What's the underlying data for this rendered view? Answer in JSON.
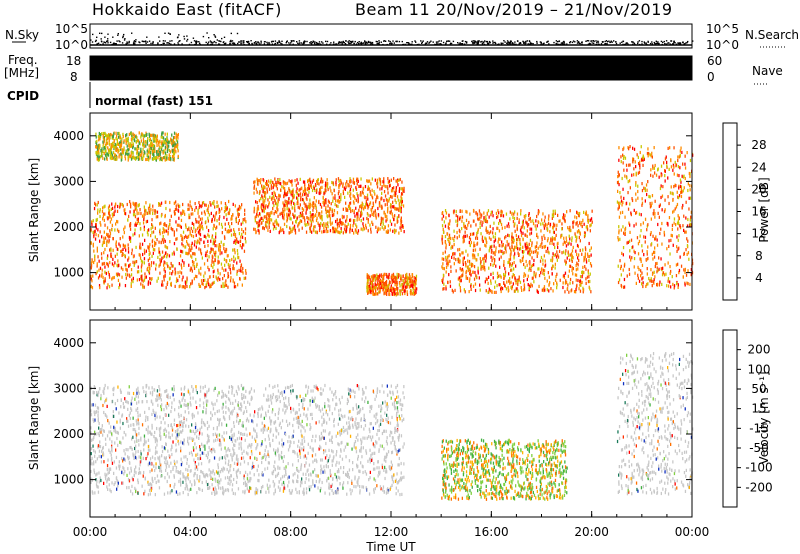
{
  "header": {
    "title": "Hokkaido East (fitACF)",
    "beam_info": "Beam 11  20/Nov/2019 – 21/Nov/2019"
  },
  "strips": {
    "nsky_label": "N.Sky",
    "nsearch_label": "N.Search",
    "freq_label_1": "Freq.",
    "freq_label_2": "[MHz]",
    "nave_label": "Nave",
    "cpid_label": "CPID",
    "cpid_text": "normal (fast) 151",
    "noise_ticks": [
      "10^5",
      "10^0"
    ],
    "freq_ticks": [
      "18",
      "8"
    ],
    "nave_ticks": [
      "60",
      "0"
    ]
  },
  "chart_data": [
    {
      "type": "heatmap",
      "panel": "power",
      "ylabel": "Slant Range [km]",
      "xlabel": "",
      "y_ticks": [
        1000,
        2000,
        3000,
        4000
      ],
      "ylim": [
        180,
        4500
      ],
      "xlim": [
        0,
        24
      ],
      "colorbar": {
        "label": "Power [dB]",
        "ticks": [
          4,
          8,
          12,
          16,
          20,
          24,
          28
        ],
        "colors": [
          "#0000ff",
          "#2050a0",
          "#3a7a5a",
          "#40a040",
          "#c8c800",
          "#ff8c00",
          "#ff5000",
          "#ff0000"
        ]
      },
      "regions": [
        {
          "t0": 0.0,
          "t1": 6.2,
          "r0": 700,
          "r1": 2600,
          "level": "high"
        },
        {
          "t0": 0.2,
          "t1": 3.5,
          "r0": 3500,
          "r1": 4100,
          "level": "mid"
        },
        {
          "t0": 6.5,
          "t1": 12.5,
          "r0": 1900,
          "r1": 3100,
          "level": "high"
        },
        {
          "t0": 11.0,
          "t1": 13.0,
          "r0": 550,
          "r1": 1000,
          "level": "high"
        },
        {
          "t0": 14.0,
          "t1": 20.0,
          "r0": 600,
          "r1": 2400,
          "level": "high"
        },
        {
          "t0": 21.0,
          "t1": 24.0,
          "r0": 700,
          "r1": 3800,
          "level": "high"
        }
      ]
    },
    {
      "type": "heatmap",
      "panel": "velocity",
      "ylabel": "Slant Range [km]",
      "xlabel": "Time UT",
      "x_ticks": [
        "00:00",
        "04:00",
        "08:00",
        "12:00",
        "16:00",
        "20:00",
        "00:00"
      ],
      "y_ticks": [
        1000,
        2000,
        3000,
        4000
      ],
      "ylim": [
        180,
        4500
      ],
      "xlim": [
        0,
        24
      ],
      "colorbar": {
        "label": "Velocity [m s⁻¹]",
        "ticks": [
          200,
          100,
          50,
          15,
          -15,
          -50,
          -100,
          -200
        ],
        "colors": [
          "#1030c0",
          "#1a7a5a",
          "#40b040",
          "#80d040",
          "#c8c8c8",
          "#ffb000",
          "#ff7000",
          "#ff3000",
          "#ff0000"
        ]
      },
      "regions": [
        {
          "t0": 0.0,
          "t1": 12.5,
          "r0": 700,
          "r1": 3100,
          "level": "low"
        },
        {
          "t0": 14.0,
          "t1": 19.0,
          "r0": 600,
          "r1": 1900,
          "level": "mixed"
        },
        {
          "t0": 21.0,
          "t1": 24.0,
          "r0": 700,
          "r1": 3800,
          "level": "low"
        }
      ]
    }
  ]
}
